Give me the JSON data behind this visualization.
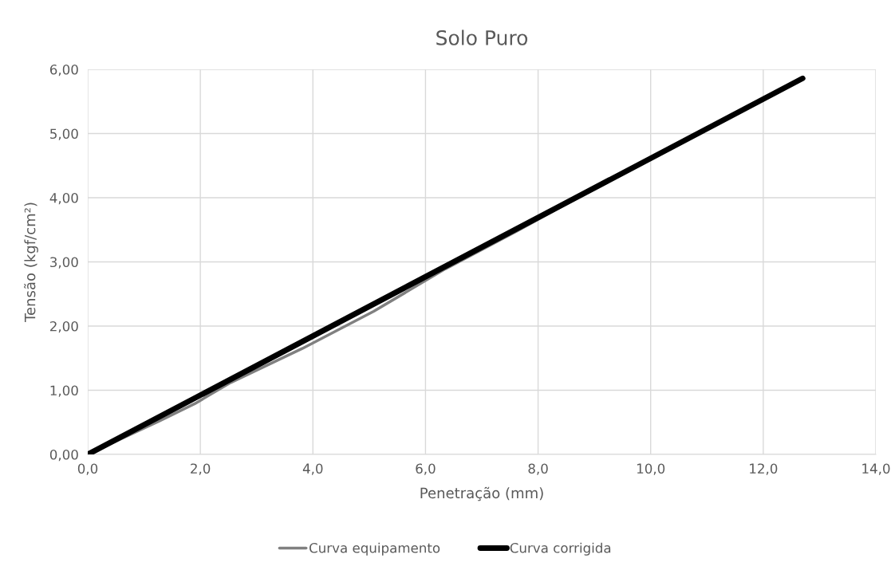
{
  "chart_data": {
    "type": "line",
    "title": "Solo Puro",
    "xlabel": "Penetração (mm)",
    "ylabel": "Tensão (kgf/cm²)",
    "series": [
      {
        "name": "Curva equipamento",
        "color": "#808080",
        "x": [
          0,
          0.63,
          1.27,
          1.9,
          2.54,
          3.81,
          5.08,
          6.35,
          7.62,
          8.89,
          10.16,
          11.43,
          12.7
        ],
        "values": [
          0,
          0.26,
          0.52,
          0.79,
          1.12,
          1.65,
          2.23,
          2.89,
          3.48,
          4.09,
          4.68,
          5.27,
          5.86
        ]
      },
      {
        "name": "Curva corrigida",
        "color": "#000000",
        "x": [
          0,
          12.7
        ],
        "values": [
          0,
          5.86
        ]
      }
    ],
    "xlim": [
      0,
      14
    ],
    "ylim": [
      0,
      6
    ],
    "xticks": [
      {
        "value": 0,
        "label": "0,0"
      },
      {
        "value": 2,
        "label": "2,0"
      },
      {
        "value": 4,
        "label": "4,0"
      },
      {
        "value": 6,
        "label": "6,0"
      },
      {
        "value": 8,
        "label": "8,0"
      },
      {
        "value": 10,
        "label": "10,0"
      },
      {
        "value": 12,
        "label": "12,0"
      },
      {
        "value": 14,
        "label": "14,0"
      }
    ],
    "yticks": [
      {
        "value": 0,
        "label": "0,00"
      },
      {
        "value": 1,
        "label": "1,00"
      },
      {
        "value": 2,
        "label": "2,00"
      },
      {
        "value": 3,
        "label": "3,00"
      },
      {
        "value": 4,
        "label": "4,00"
      },
      {
        "value": 5,
        "label": "5,00"
      },
      {
        "value": 6,
        "label": "6,00"
      }
    ],
    "grid": true,
    "legend": "bottom",
    "marker": "none",
    "line_style": "solid"
  }
}
